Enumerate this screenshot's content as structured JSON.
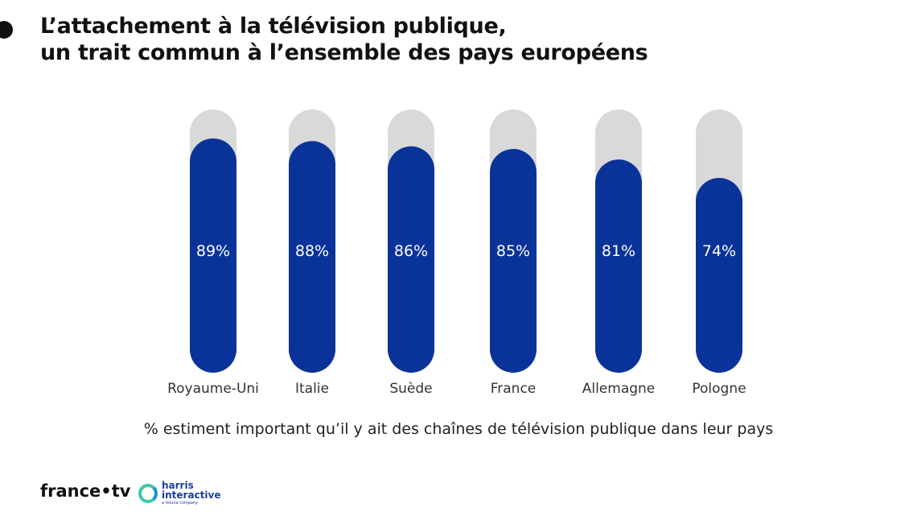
{
  "title": {
    "line1": "L’attachement à la télévision publique,",
    "line2": "un trait commun à l’ensemble des pays européens"
  },
  "chart_data": {
    "type": "bar",
    "categories": [
      "Royaume-Uni",
      "Italie",
      "Suède",
      "France",
      "Allemagne",
      "Pologne"
    ],
    "values": [
      89,
      88,
      86,
      85,
      81,
      74
    ],
    "labels": [
      "89%",
      "88%",
      "86%",
      "85%",
      "81%",
      "74%"
    ],
    "ylim": [
      0,
      100
    ],
    "caption": "% estiment important qu’il y ait des chaînes de télévision publique dans leur pays",
    "colors": {
      "bar": "#0a3399",
      "track": "#d9d9d9"
    }
  },
  "footer": {
    "france_tv": "france•tv",
    "harris_line1": "harris",
    "harris_line2": "interactive",
    "harris_sub": "a toluna company"
  }
}
